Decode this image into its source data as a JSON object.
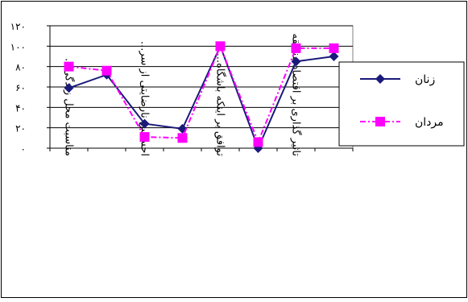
{
  "chart_data": {
    "type": "line",
    "categories": [
      "مناسبت محل زندگی...",
      "",
      "احساس نارضایتی از سر...",
      "",
      "توافق بر اینکه باشگاه...",
      "",
      "تاثیر گذاری بر اقتصاد منطقه",
      ""
    ],
    "series": [
      {
        "name": "زنان",
        "values": [
          59,
          72,
          24,
          19,
          100,
          0,
          85,
          90
        ],
        "color": "#1a1a7a",
        "marker": "diamond"
      },
      {
        "name": "مردان",
        "values": [
          80,
          76,
          11,
          10,
          100,
          6,
          98,
          98
        ],
        "color": "#ff00ff",
        "marker": "square",
        "dashed": true
      }
    ],
    "y_tick_labels": [
      "۰",
      "۲۰",
      "۴۰",
      "۶۰",
      "۸۰",
      "۱۰۰",
      "۱۲۰"
    ],
    "ylim": [
      0,
      120
    ],
    "grid": true,
    "legend_position": "right",
    "title": "",
    "xlabel": "",
    "ylabel": ""
  }
}
